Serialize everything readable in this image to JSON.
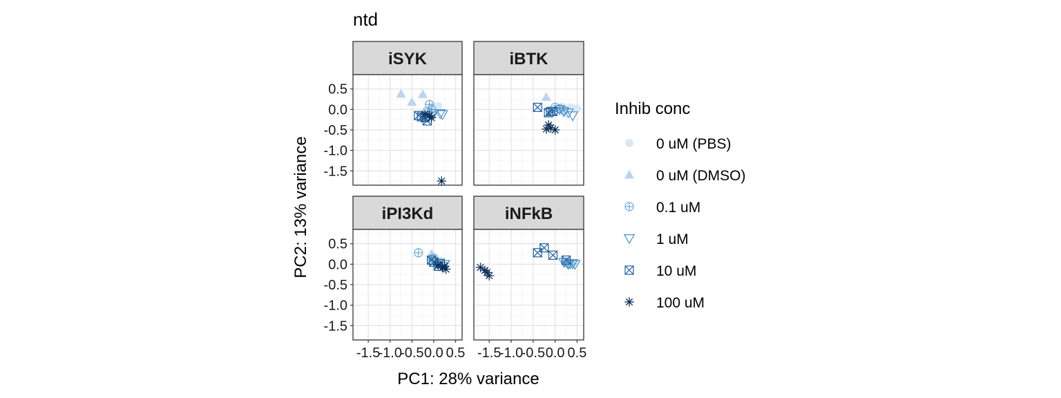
{
  "chart_data": {
    "type": "scatter",
    "title": "ntd",
    "xlabel": "PC1: 28% variance",
    "ylabel": "PC2: 13% variance",
    "xlim": [
      -1.85,
      0.65
    ],
    "ylim": [
      -1.85,
      0.85
    ],
    "x_ticks": [
      -1.5,
      -1.0,
      -0.5,
      0.0,
      0.5
    ],
    "x_tick_labels": [
      "-1.5",
      "-1.0",
      "-0.5",
      "0.0",
      "0.5"
    ],
    "y_ticks": [
      0.5,
      0.0,
      -0.5,
      -1.0,
      -1.5
    ],
    "y_tick_labels": [
      "0.5",
      "0.0",
      "-0.5",
      "-1.0",
      "-1.5"
    ],
    "grid": true,
    "facet_order": [
      "iSYK",
      "iBTK",
      "iPI3Kd",
      "iNFkB"
    ],
    "legend": {
      "title": "Inhib conc",
      "placement": "right",
      "entries": [
        {
          "label": "0 uM (PBS)",
          "shape": "circle",
          "color": "#DCE7F5"
        },
        {
          "label": "0 uM (DMSO)",
          "shape": "triangle",
          "color": "#BDD4EE"
        },
        {
          "label": "0.1 uM",
          "shape": "circle-plus",
          "color": "#6FA8D6"
        },
        {
          "label": "1 uM",
          "shape": "triangle-down",
          "color": "#4A8FC6"
        },
        {
          "label": "10 uM",
          "shape": "square-x",
          "color": "#1F5F9B"
        },
        {
          "label": "100 uM",
          "shape": "asterisk",
          "color": "#0B2F57"
        }
      ]
    },
    "panels": [
      {
        "name": "iSYK",
        "series": [
          {
            "name": "0 uM (PBS)",
            "points": [
              [
                0.0,
                0.08
              ],
              [
                0.1,
                0.08
              ],
              [
                -0.05,
                0.06
              ]
            ]
          },
          {
            "name": "0 uM (DMSO)",
            "points": [
              [
                -0.75,
                0.38
              ],
              [
                -0.5,
                0.18
              ],
              [
                -0.25,
                0.37
              ]
            ]
          },
          {
            "name": "0.1 uM",
            "points": [
              [
                -0.1,
                0.12
              ],
              [
                -0.05,
                0.0
              ],
              [
                -0.15,
                -0.05
              ]
            ]
          },
          {
            "name": "1 uM",
            "points": [
              [
                -0.05,
                -0.15
              ],
              [
                0.0,
                -0.1
              ],
              [
                0.15,
                -0.1
              ],
              [
                0.2,
                -0.12
              ]
            ]
          },
          {
            "name": "10 uM",
            "points": [
              [
                -0.35,
                -0.15
              ],
              [
                -0.2,
                -0.2
              ],
              [
                -0.15,
                -0.28
              ],
              [
                -0.28,
                -0.18
              ]
            ]
          },
          {
            "name": "100 uM",
            "points": [
              [
                -0.2,
                -0.12
              ],
              [
                -0.05,
                -0.2
              ],
              [
                -0.1,
                -0.15
              ],
              [
                0.18,
                -1.75
              ]
            ]
          }
        ]
      },
      {
        "name": "iBTK",
        "series": [
          {
            "name": "0 uM (PBS)",
            "points": [
              [
                0.15,
                0.06
              ],
              [
                0.35,
                0.05
              ],
              [
                0.5,
                0.02
              ]
            ]
          },
          {
            "name": "0 uM (DMSO)",
            "points": [
              [
                -0.2,
                0.3
              ]
            ]
          },
          {
            "name": "0.1 uM",
            "points": [
              [
                0.0,
                0.05
              ],
              [
                0.1,
                0.02
              ],
              [
                0.2,
                -0.02
              ]
            ]
          },
          {
            "name": "1 uM",
            "points": [
              [
                0.1,
                0.0
              ],
              [
                0.2,
                -0.05
              ],
              [
                0.3,
                -0.08
              ],
              [
                0.4,
                -0.15
              ]
            ]
          },
          {
            "name": "10 uM",
            "points": [
              [
                -0.4,
                0.05
              ],
              [
                -0.1,
                -0.05
              ],
              [
                -0.15,
                -0.08
              ],
              [
                -0.05,
                -0.05
              ]
            ]
          },
          {
            "name": "100 uM",
            "points": [
              [
                -0.15,
                -0.38
              ],
              [
                -0.1,
                -0.45
              ],
              [
                0.0,
                -0.5
              ],
              [
                -0.2,
                -0.48
              ]
            ]
          }
        ]
      },
      {
        "name": "iPI3Kd",
        "series": [
          {
            "name": "0 uM (PBS)",
            "points": [
              [
                -0.05,
                0.15
              ],
              [
                0.05,
                0.1
              ],
              [
                0.15,
                0.08
              ]
            ]
          },
          {
            "name": "0 uM (DMSO)",
            "points": [
              [
                -0.05,
                0.25
              ]
            ]
          },
          {
            "name": "0.1 uM",
            "points": [
              [
                -0.35,
                0.28
              ],
              [
                0.0,
                0.15
              ],
              [
                -0.05,
                0.1
              ],
              [
                0.05,
                0.05
              ]
            ]
          },
          {
            "name": "1 uM",
            "points": [
              [
                0.1,
                0.0
              ],
              [
                0.2,
                -0.05
              ],
              [
                0.25,
                0.0
              ]
            ]
          },
          {
            "name": "10 uM",
            "points": [
              [
                -0.05,
                0.1
              ],
              [
                0.0,
                0.05
              ],
              [
                0.1,
                -0.05
              ],
              [
                0.15,
                0.02
              ]
            ]
          },
          {
            "name": "100 uM",
            "points": [
              [
                0.1,
                -0.02
              ],
              [
                0.2,
                -0.08
              ],
              [
                0.25,
                -0.05
              ],
              [
                0.28,
                -0.12
              ]
            ]
          }
        ]
      },
      {
        "name": "iNFkB",
        "series": [
          {
            "name": "0 uM (PBS)",
            "points": [
              [
                0.3,
                0.05
              ],
              [
                0.4,
                0.03
              ]
            ]
          },
          {
            "name": "0 uM (DMSO)",
            "points": []
          },
          {
            "name": "0.1 uM",
            "points": [
              [
                0.25,
                0.05
              ],
              [
                0.35,
                0.0
              ],
              [
                0.3,
                0.02
              ]
            ]
          },
          {
            "name": "1 uM",
            "points": [
              [
                0.2,
                0.05
              ],
              [
                0.3,
                0.0
              ],
              [
                0.4,
                0.02
              ],
              [
                0.45,
                0.0
              ]
            ]
          },
          {
            "name": "10 uM",
            "points": [
              [
                -0.4,
                0.28
              ],
              [
                -0.25,
                0.4
              ],
              [
                -0.05,
                0.22
              ],
              [
                0.25,
                0.1
              ]
            ]
          },
          {
            "name": "100 uM",
            "points": [
              [
                -1.7,
                -0.08
              ],
              [
                -1.6,
                -0.15
              ],
              [
                -1.55,
                -0.2
              ],
              [
                -1.5,
                -0.28
              ]
            ]
          }
        ]
      }
    ]
  }
}
